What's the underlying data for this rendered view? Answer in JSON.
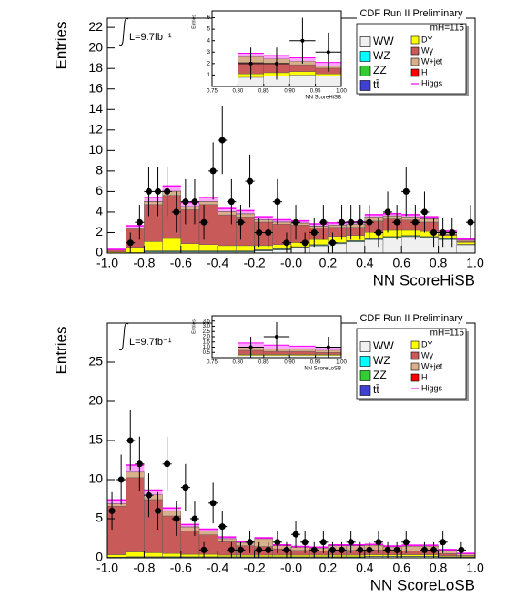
{
  "chart_data": [
    {
      "type": "histogram",
      "title": "CDF Run II Preliminary",
      "ylabel": "Entries",
      "xlabel": "NN ScoreHiSB",
      "luminosity": "L=9.7fb⁻¹",
      "mass_label": "mH=115",
      "stacked": true,
      "bins": [
        -1,
        -0.9,
        -0.8,
        -0.7,
        -0.6,
        -0.5,
        -0.4,
        -0.3,
        -0.2,
        -0.1,
        0,
        0.1,
        0.2,
        0.3,
        0.4,
        0.5,
        0.6,
        0.7,
        0.8,
        0.9,
        1
      ],
      "xlim": [
        -1,
        1
      ],
      "xticks": [
        {
          "value": -1,
          "label": "-1.0"
        },
        -0.8,
        -0.6,
        -0.4,
        -0.2,
        {
          "value": 0,
          "label": "-0.0"
        },
        0.2,
        0.4,
        0.6,
        0.8,
        {
          "value": 1,
          "label": "1.0"
        }
      ],
      "ylim": [
        0,
        22.9
      ],
      "yticks": [
        0,
        2,
        4,
        6,
        8,
        10,
        12,
        14,
        16,
        18,
        20,
        22
      ],
      "series": [
        {
          "name": "WW",
          "color": "#f0f0f0",
          "values": [
            0,
            0,
            0.1,
            0.1,
            0.1,
            0.1,
            0.1,
            0.1,
            0.2,
            0.3,
            0.5,
            0.7,
            0.9,
            1.1,
            1.3,
            1.5,
            1.6,
            1.5,
            1.3,
            0.8
          ]
        },
        {
          "name": "WZ",
          "color": "#00ffff",
          "values": [
            0,
            0.02,
            0.05,
            0.05,
            0.05,
            0.05,
            0.05,
            0.05,
            0.05,
            0.05,
            0.05,
            0.05,
            0.05,
            0.05,
            0.05,
            0.05,
            0.05,
            0.05,
            0.05,
            0.02
          ]
        },
        {
          "name": "ZZ",
          "color": "#33cc33",
          "values": [
            0,
            0.02,
            0.05,
            0.05,
            0.05,
            0.05,
            0.05,
            0.05,
            0.05,
            0.05,
            0.05,
            0.05,
            0.05,
            0.05,
            0.05,
            0.05,
            0.05,
            0.05,
            0.05,
            0.02
          ]
        },
        {
          "name": "tt̄",
          "color": "#4040d0",
          "values": [
            0,
            0.01,
            0.02,
            0.02,
            0.02,
            0.02,
            0.02,
            0.02,
            0.02,
            0.02,
            0.02,
            0.02,
            0.02,
            0.02,
            0.02,
            0.02,
            0.02,
            0.02,
            0.02,
            0.01
          ]
        },
        {
          "name": "DY",
          "color": "#ffff00",
          "values": [
            0.1,
            0.5,
            0.9,
            1.2,
            0.7,
            0.6,
            0.5,
            0.5,
            0.4,
            0.4,
            0.4,
            0.5,
            0.6,
            0.5,
            0.6,
            0.6,
            0.5,
            0.5,
            0.3,
            0.2
          ]
        },
        {
          "name": "Wγ",
          "color": "#c85a5a",
          "values": [
            0.2,
            1.8,
            3.6,
            4.2,
            3.3,
            3.9,
            3.0,
            2.8,
            2.3,
            2.0,
            1.7,
            1.1,
            0.9,
            0.8,
            1.1,
            1.1,
            1.0,
            0.9,
            0.1,
            0.1
          ]
        },
        {
          "name": "W+jet",
          "color": "#d9b08c",
          "values": [
            0,
            0.1,
            0.3,
            0.4,
            0.3,
            0.3,
            0.3,
            0.3,
            0.2,
            0.2,
            0.2,
            0.2,
            0.2,
            0.3,
            0.4,
            0.3,
            0.3,
            0.3,
            0.2,
            0.1
          ]
        },
        {
          "name": "H",
          "color": "#ff0000",
          "values": [
            0,
            0.01,
            0.02,
            0.02,
            0.02,
            0.02,
            0.02,
            0.02,
            0.02,
            0.02,
            0.02,
            0.02,
            0.02,
            0.02,
            0.02,
            0.02,
            0.02,
            0.02,
            0.02,
            0.01
          ]
        },
        {
          "name": "Higgs",
          "color": "#ff00ff",
          "style": "line",
          "values": [
            0.05,
            0.2,
            0.4,
            0.5,
            0.4,
            0.4,
            0.3,
            0.3,
            0.3,
            0.2,
            0.2,
            0.2,
            0.2,
            0.2,
            0.2,
            0.2,
            0.2,
            0.2,
            0.1,
            0.1
          ]
        }
      ],
      "points": {
        "x": [
          -0.875,
          -0.825,
          -0.775,
          -0.725,
          -0.675,
          -0.625,
          -0.575,
          -0.525,
          -0.475,
          -0.425,
          -0.375,
          -0.325,
          -0.275,
          -0.225,
          -0.175,
          -0.125,
          -0.075,
          -0.025,
          0.025,
          0.075,
          0.125,
          0.175,
          0.225,
          0.275,
          0.325,
          0.375,
          0.425,
          0.475,
          0.525,
          0.575,
          0.625,
          0.675,
          0.725,
          0.775,
          0.825,
          0.875,
          0.975
        ],
        "y": [
          1,
          3,
          6,
          6,
          6,
          4,
          5,
          5,
          3,
          8,
          11,
          5,
          3,
          7,
          2,
          2,
          5,
          1,
          3,
          1,
          2,
          3,
          1,
          3,
          3,
          3,
          3,
          2,
          4,
          3,
          6,
          3,
          4,
          2,
          2,
          2,
          3
        ],
        "err": [
          1,
          1.7,
          2.4,
          2.4,
          2.4,
          2,
          2.2,
          2.2,
          1.7,
          2.8,
          3.3,
          2.2,
          1.7,
          2.6,
          1.4,
          1.4,
          2.2,
          1,
          1.7,
          1,
          1.4,
          1.7,
          1,
          1.7,
          1.7,
          1.7,
          1.7,
          1.4,
          2,
          1.7,
          2.4,
          1.7,
          2,
          1.4,
          1.4,
          1.4,
          1.7
        ]
      },
      "inset": {
        "ylabel": "Entries",
        "xlabel": "NN ScoreHiSB",
        "bins": [
          0.75,
          0.8,
          0.85,
          0.9,
          0.95,
          1
        ],
        "xlim": [
          0.75,
          1
        ],
        "xticks": [
          0.75,
          {
            "value": 0.8,
            "label": "0.80"
          },
          0.85,
          {
            "value": 0.9,
            "label": "0.90"
          },
          0.95,
          {
            "value": 1,
            "label": "1.00"
          }
        ],
        "ylim": [
          0,
          6.6
        ],
        "yticks": [
          1,
          2,
          3,
          4,
          5,
          6
        ],
        "series": [
          {
            "color": "#f0f0f0",
            "values": [
              0,
              0.8,
              0.9,
              1.0,
              0.9
            ]
          },
          {
            "color": "#ffff00",
            "values": [
              0,
              0.3,
              0.3,
              0.3,
              0.2
            ]
          },
          {
            "color": "#c85a5a",
            "values": [
              0,
              1.0,
              0.8,
              0.6,
              0.5
            ]
          },
          {
            "color": "#d9b08c",
            "values": [
              0,
              0.5,
              0.4,
              0.3,
              0.2
            ]
          },
          {
            "color": "#ff00ff",
            "style": "line",
            "values": [
              0,
              0.3,
              0.3,
              0.3,
              0.3
            ]
          }
        ],
        "points": {
          "x": [
            0.825,
            0.875,
            0.925,
            0.975
          ],
          "y": [
            2,
            2,
            4,
            3
          ],
          "err": [
            1.4,
            1.4,
            2,
            1.7
          ]
        }
      }
    },
    {
      "type": "histogram",
      "title": "CDF Run II Preliminary",
      "ylabel": "Entries",
      "xlabel": "NN ScoreLoSB",
      "luminosity": "L=9.7fb⁻¹",
      "mass_label": "mH=115",
      "stacked": true,
      "bins": [
        -1,
        -0.9,
        -0.8,
        -0.7,
        -0.6,
        -0.5,
        -0.4,
        -0.3,
        -0.2,
        -0.1,
        0,
        0.1,
        0.2,
        0.3,
        0.4,
        0.5,
        0.6,
        0.7,
        0.8,
        0.9,
        1
      ],
      "xlim": [
        -1,
        1
      ],
      "xticks": [
        {
          "value": -1,
          "label": "-1.0"
        },
        -0.8,
        -0.6,
        -0.4,
        -0.2,
        {
          "value": 0,
          "label": "-0.0"
        },
        0.2,
        0.4,
        0.6,
        0.8,
        {
          "value": 1,
          "label": "1.0"
        }
      ],
      "ylim": [
        0,
        30
      ],
      "yticks": [
        0,
        5,
        10,
        15,
        20,
        25
      ],
      "series": [
        {
          "name": "WW",
          "color": "#f0f0f0",
          "values": [
            0.05,
            0.1,
            0.1,
            0.1,
            0.1,
            0.1,
            0.1,
            0.1,
            0.1,
            0.1,
            0.1,
            0.1,
            0.1,
            0.1,
            0.15,
            0.15,
            0.15,
            0.15,
            0.1,
            0.05
          ]
        },
        {
          "name": "WZ",
          "color": "#00ffff",
          "values": [
            0.02,
            0.02,
            0.02,
            0.02,
            0.02,
            0.02,
            0.02,
            0.02,
            0.02,
            0.02,
            0.02,
            0.02,
            0.02,
            0.02,
            0.02,
            0.02,
            0.02,
            0.02,
            0.02,
            0.02
          ]
        },
        {
          "name": "ZZ",
          "color": "#33cc33",
          "values": [
            0.02,
            0.02,
            0.02,
            0.02,
            0.02,
            0.02,
            0.02,
            0.02,
            0.02,
            0.02,
            0.02,
            0.02,
            0.02,
            0.02,
            0.02,
            0.02,
            0.02,
            0.02,
            0.02,
            0.02
          ]
        },
        {
          "name": "tt̄",
          "color": "#4040d0",
          "values": [
            0.01,
            0.01,
            0.01,
            0.01,
            0.01,
            0.01,
            0.01,
            0.01,
            0.01,
            0.01,
            0.01,
            0.01,
            0.01,
            0.01,
            0.01,
            0.01,
            0.01,
            0.01,
            0.01,
            0.01
          ]
        },
        {
          "name": "DY",
          "color": "#ffff00",
          "values": [
            0.3,
            0.6,
            0.5,
            0.4,
            0.3,
            0.3,
            0.2,
            0.2,
            0.2,
            0.2,
            0.2,
            0.2,
            0.2,
            0.2,
            0.2,
            0.2,
            0.2,
            0.2,
            0.1,
            0.1
          ]
        },
        {
          "name": "Wγ",
          "color": "#c85a5a",
          "values": [
            6.2,
            9.5,
            6.8,
            4.8,
            3.0,
            2.5,
            1.7,
            1.2,
            1.1,
            0.8,
            0.6,
            0.5,
            0.6,
            0.6,
            0.6,
            0.5,
            0.5,
            0.5,
            0.3,
            0.1
          ]
        },
        {
          "name": "W+jet",
          "color": "#d9b08c",
          "values": [
            0.3,
            0.7,
            0.6,
            0.6,
            0.5,
            0.5,
            0.4,
            0.4,
            1.0,
            0.4,
            0.4,
            0.4,
            0.6,
            0.6,
            0.6,
            0.5,
            0.6,
            0.6,
            0.4,
            0.2
          ]
        },
        {
          "name": "H",
          "color": "#ff0000",
          "values": [
            0.01,
            0.01,
            0.01,
            0.01,
            0.01,
            0.01,
            0.01,
            0.01,
            0.01,
            0.01,
            0.01,
            0.01,
            0.01,
            0.01,
            0.01,
            0.01,
            0.01,
            0.01,
            0.01,
            0.01
          ]
        },
        {
          "name": "Higgs",
          "color": "#ff00ff",
          "style": "line",
          "values": [
            0.5,
            0.9,
            0.6,
            0.4,
            0.3,
            0.2,
            0.2,
            0.1,
            0.1,
            0.1,
            0.1,
            0.1,
            0.1,
            0.1,
            0.1,
            0.1,
            0.1,
            0.1,
            0.1,
            0.05
          ]
        }
      ],
      "points": {
        "x": [
          -0.975,
          -0.925,
          -0.875,
          -0.825,
          -0.775,
          -0.725,
          -0.675,
          -0.625,
          -0.575,
          -0.525,
          -0.475,
          -0.425,
          -0.375,
          -0.325,
          -0.275,
          -0.225,
          -0.175,
          -0.125,
          -0.075,
          -0.025,
          0.025,
          0.075,
          0.125,
          0.175,
          0.225,
          0.275,
          0.325,
          0.375,
          0.425,
          0.475,
          0.525,
          0.575,
          0.625,
          0.725,
          0.775,
          0.825,
          0.925
        ],
        "y": [
          6,
          10,
          15,
          12,
          8,
          6,
          12,
          5,
          9,
          5,
          1,
          7,
          4,
          1,
          1,
          2,
          1,
          1,
          2,
          1,
          3,
          2,
          1,
          2,
          1,
          1,
          2,
          1,
          1,
          2,
          1,
          1,
          2,
          1,
          1,
          2,
          1
        ],
        "err": [
          2.4,
          3.2,
          3.9,
          3.5,
          2.8,
          2.4,
          3.5,
          2.2,
          3,
          2.2,
          1,
          2.6,
          2,
          1,
          1,
          1.4,
          1,
          1,
          1.4,
          1,
          1.7,
          1.4,
          1,
          1.4,
          1,
          1,
          1.4,
          1,
          1,
          1.4,
          1,
          1,
          1.4,
          1,
          1,
          1.4,
          1
        ]
      },
      "inset": {
        "ylabel": "Entries",
        "xlabel": "NN ScoreLoSB",
        "bins": [
          0.75,
          0.8,
          0.85,
          0.9,
          0.95,
          1
        ],
        "xlim": [
          0.75,
          1
        ],
        "xticks": [
          0.75,
          {
            "value": 0.8,
            "label": "0.80"
          },
          0.85,
          {
            "value": 0.9,
            "label": "0.90"
          },
          0.95,
          {
            "value": 1,
            "label": "1.00"
          }
        ],
        "ylim": [
          0,
          4
        ],
        "yticks": [
          0.5,
          {
            "value": 1,
            "label": "1.0"
          },
          1.5,
          {
            "value": 2,
            "label": "2.0"
          },
          2.5,
          {
            "value": 3,
            "label": "3.0"
          },
          3.5
        ],
        "series": [
          {
            "color": "#f0f0f0",
            "values": [
              0,
              0.2,
              0.2,
              0.2,
              0.2
            ]
          },
          {
            "color": "#ffff00",
            "values": [
              0,
              0.1,
              0.1,
              0.1,
              0.1
            ]
          },
          {
            "color": "#c85a5a",
            "values": [
              0,
              0.4,
              0.3,
              0.3,
              0.2
            ]
          },
          {
            "color": "#d9b08c",
            "values": [
              0,
              0.3,
              0.2,
              0.2,
              0.2
            ]
          },
          {
            "color": "#ff00ff",
            "style": "line",
            "values": [
              0,
              0.4,
              0.4,
              0.3,
              0.3
            ]
          }
        ],
        "points": {
          "x": [
            0.825,
            0.875,
            0.975
          ],
          "y": [
            1,
            2,
            1
          ],
          "err": [
            1,
            1.4,
            1
          ]
        }
      }
    }
  ]
}
